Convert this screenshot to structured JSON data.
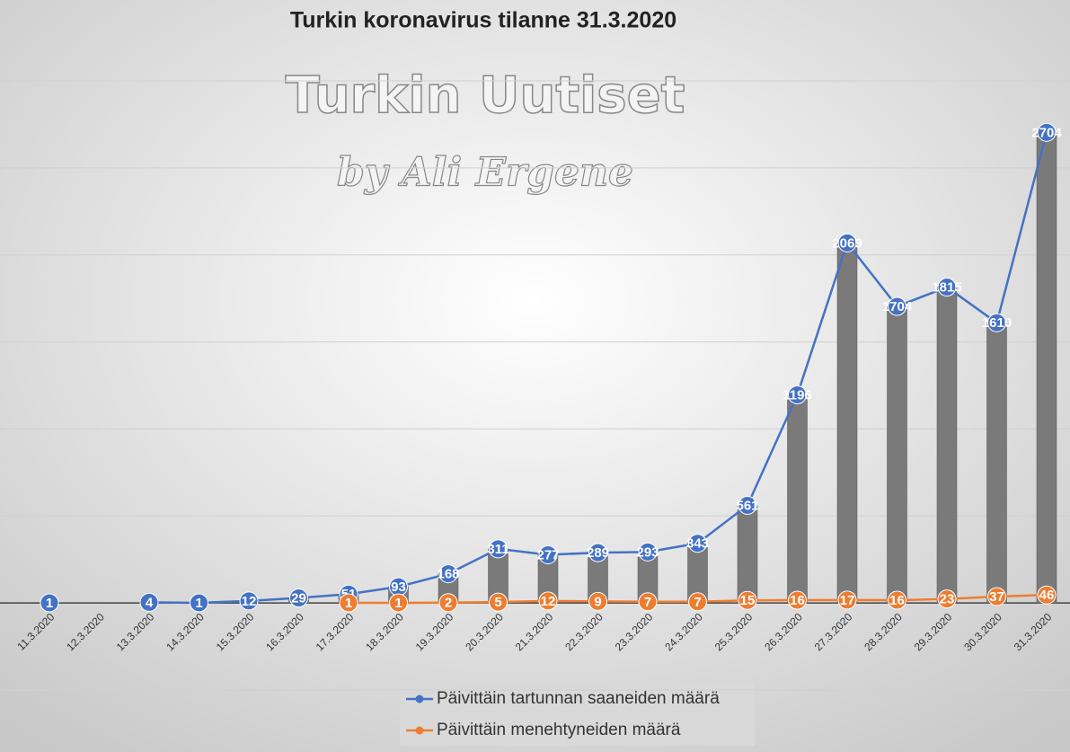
{
  "chart_data": {
    "type": "line",
    "title": "Turkin koronavirus tilanne 31.3.2020",
    "watermark": [
      "Turkin Uutiset",
      "by Ali Ergene"
    ],
    "categories": [
      "11.3.2020",
      "12.3.2020",
      "13.3.2020",
      "14.3.2020",
      "15.3.2020",
      "16.3.2020",
      "17.3.2020",
      "18.3.2020",
      "19.3.2020",
      "20.3.2020",
      "21.3.2020",
      "22.3.2020",
      "23.3.2020",
      "24.3.2020",
      "25.3.2020",
      "26.3.2020",
      "27.3.2020",
      "28.3.2020",
      "29.3.2020",
      "30.3.2020",
      "31.3.2020"
    ],
    "series": [
      {
        "name": "Päivittäin tartunnan saaneiden määrä",
        "color": "#4472c4",
        "bar_color": "#7a7a7a",
        "values": [
          1,
          null,
          4,
          1,
          12,
          29,
          51,
          93,
          168,
          311,
          277,
          289,
          293,
          343,
          561,
          1196,
          2069,
          1704,
          1815,
          1610,
          2704
        ]
      },
      {
        "name": "Päivittäin menehtyneiden määrä",
        "color": "#ed7d31",
        "values": [
          null,
          null,
          null,
          null,
          null,
          null,
          1,
          1,
          2,
          5,
          12,
          9,
          7,
          7,
          15,
          16,
          17,
          16,
          23,
          37,
          46
        ]
      }
    ],
    "ylim": [
      -500,
      3000
    ],
    "yticks": [
      -500,
      0,
      500,
      1000,
      1500,
      2000,
      2500,
      3000
    ],
    "grid": true
  }
}
